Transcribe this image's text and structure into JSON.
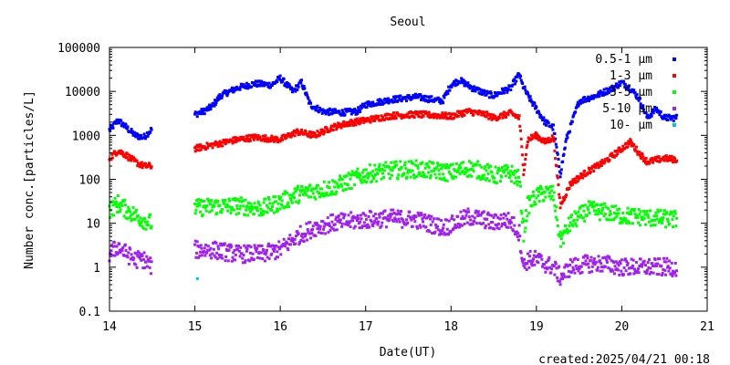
{
  "chart_data": {
    "type": "scatter",
    "title": "Seoul",
    "xlabel": "Date(UT)",
    "ylabel": "Number conc.[particles/L]",
    "yscale": "log",
    "xlim": [
      14,
      21
    ],
    "ylim": [
      0.1,
      100000
    ],
    "x_ticks": [
      "14",
      "15",
      "16",
      "17",
      "18",
      "19",
      "20",
      "21"
    ],
    "y_ticks": [
      "0.1",
      "1",
      "10",
      "100",
      "1000",
      "10000",
      "100000"
    ],
    "grid": false,
    "legend_position": "top-right",
    "gaps": [
      [
        14.52,
        14.98
      ]
    ],
    "series": [
      {
        "name": "0.5-1 μm",
        "color": "#0000ff",
        "x": [
          14.0,
          14.1,
          14.2,
          14.3,
          14.4,
          14.5,
          15.0,
          15.1,
          15.2,
          15.3,
          15.5,
          15.7,
          15.9,
          16.0,
          16.15,
          16.25,
          16.35,
          16.5,
          16.7,
          16.9,
          17.0,
          17.3,
          17.6,
          17.9,
          18.0,
          18.1,
          18.25,
          18.4,
          18.5,
          18.6,
          18.7,
          18.8,
          18.83,
          18.9,
          19.0,
          19.1,
          19.2,
          19.28,
          19.35,
          19.5,
          19.7,
          19.9,
          20.0,
          20.1,
          20.2,
          20.3,
          20.4,
          20.5,
          20.65
        ],
        "y": [
          1300,
          2200,
          1500,
          1000,
          900,
          1400,
          3000,
          3500,
          4500,
          8000,
          12000,
          15000,
          14000,
          20000,
          10000,
          16000,
          5000,
          3500,
          3300,
          3500,
          5000,
          6500,
          7500,
          6000,
          14000,
          18000,
          12000,
          9000,
          8000,
          10000,
          12000,
          25000,
          15000,
          8000,
          4000,
          2000,
          1500,
          130,
          800,
          6000,
          8000,
          12000,
          16000,
          12000,
          7000,
          2500,
          4000,
          2500,
          2500
        ]
      },
      {
        "name": "1-3 μm",
        "color": "#ff0000",
        "x": [
          14.0,
          14.1,
          14.2,
          14.3,
          14.4,
          14.5,
          15.0,
          15.2,
          15.5,
          15.7,
          16.0,
          16.2,
          16.4,
          16.6,
          16.8,
          17.0,
          17.3,
          17.6,
          17.9,
          18.0,
          18.2,
          18.4,
          18.5,
          18.6,
          18.7,
          18.8,
          18.85,
          18.9,
          19.0,
          19.1,
          19.2,
          19.28,
          19.4,
          19.6,
          19.8,
          20.0,
          20.1,
          20.2,
          20.3,
          20.5,
          20.65
        ],
        "y": [
          300,
          450,
          350,
          250,
          200,
          200,
          500,
          600,
          800,
          900,
          800,
          1200,
          1000,
          1500,
          1900,
          2200,
          2800,
          3000,
          2800,
          2700,
          3500,
          3000,
          2500,
          2800,
          3200,
          2500,
          150,
          800,
          1000,
          700,
          900,
          25,
          80,
          150,
          250,
          500,
          700,
          400,
          250,
          300,
          280
        ]
      },
      {
        "name": "3-5 μm",
        "color": "#00ff00",
        "x": [
          14.0,
          14.1,
          14.2,
          14.3,
          14.4,
          14.5,
          15.0,
          15.2,
          15.5,
          15.8,
          16.0,
          16.2,
          16.4,
          16.6,
          16.8,
          17.0,
          17.3,
          17.6,
          17.9,
          18.0,
          18.2,
          18.4,
          18.5,
          18.6,
          18.7,
          18.8,
          18.85,
          18.9,
          19.0,
          19.1,
          19.2,
          19.28,
          19.4,
          19.6,
          19.8,
          20.0,
          20.2,
          20.4,
          20.65
        ],
        "y": [
          20,
          28,
          20,
          15,
          12,
          10,
          22,
          24,
          25,
          22,
          30,
          45,
          55,
          65,
          90,
          130,
          160,
          170,
          150,
          140,
          180,
          150,
          120,
          130,
          140,
          100,
          6,
          25,
          40,
          50,
          45,
          4,
          10,
          20,
          18,
          15,
          14,
          13,
          12
        ]
      },
      {
        "name": "5-10 μm",
        "color": "#a020f0",
        "x": [
          14.0,
          14.1,
          14.2,
          14.3,
          14.4,
          14.5,
          15.0,
          15.2,
          15.5,
          15.8,
          16.0,
          16.2,
          16.4,
          16.6,
          16.8,
          17.0,
          17.3,
          17.6,
          17.9,
          18.0,
          18.2,
          18.4,
          18.5,
          18.6,
          18.7,
          18.8,
          18.85,
          18.9,
          19.0,
          19.1,
          19.2,
          19.28,
          19.4,
          19.6,
          19.8,
          20.0,
          20.2,
          20.4,
          20.65
        ],
        "y": [
          2,
          3,
          2,
          1.5,
          1.5,
          1,
          2.5,
          2.5,
          2,
          2,
          2.5,
          5,
          8,
          10,
          11,
          12,
          13,
          12,
          8,
          9,
          14,
          12,
          10,
          12,
          11,
          6,
          1,
          1.5,
          1.5,
          1.2,
          1,
          0.6,
          1,
          1.2,
          1.2,
          1,
          1,
          1,
          1
        ]
      },
      {
        "name": "10- μm",
        "color": "#00bfff",
        "x": [
          15.03
        ],
        "y": [
          0.55
        ]
      }
    ],
    "annotations": [
      "created:2025/04/21 00:18"
    ]
  }
}
